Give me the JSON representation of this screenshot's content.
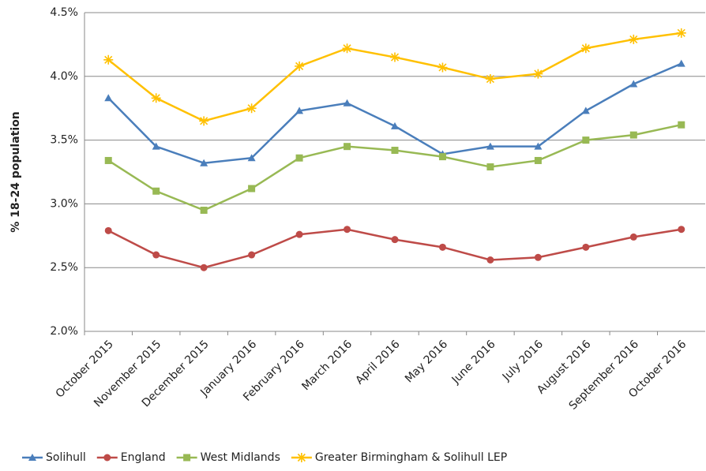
{
  "chart_data": {
    "type": "line",
    "y_label": "% 18-24 population",
    "categories": [
      "October 2015",
      "November 2015",
      "December 2015",
      "January 2016",
      "February 2016",
      "March 2016",
      "April 2016",
      "May 2016",
      "June 2016",
      "July 2016",
      "August 2016",
      "September 2016",
      "October 2016"
    ],
    "series": [
      {
        "name": "Solihull",
        "color": "#4a7ebb",
        "marker": "triangle",
        "values": [
          3.83,
          3.45,
          3.32,
          3.36,
          3.73,
          3.79,
          3.61,
          3.39,
          3.45,
          3.45,
          3.73,
          3.94,
          4.1
        ]
      },
      {
        "name": "England",
        "color": "#be4b48",
        "marker": "circle",
        "values": [
          2.79,
          2.6,
          2.5,
          2.6,
          2.76,
          2.8,
          2.72,
          2.66,
          2.56,
          2.58,
          2.66,
          2.74,
          2.8
        ]
      },
      {
        "name": "West Midlands",
        "color": "#98b954",
        "marker": "square",
        "values": [
          3.34,
          3.1,
          2.95,
          3.12,
          3.36,
          3.45,
          3.42,
          3.37,
          3.29,
          3.34,
          3.5,
          3.54,
          3.62
        ]
      },
      {
        "name": "Greater Birmingham & Solihull LEP",
        "color": "#ffc000",
        "marker": "star",
        "values": [
          4.13,
          3.83,
          3.65,
          3.75,
          4.08,
          4.22,
          4.15,
          4.07,
          3.98,
          4.02,
          4.22,
          4.29,
          4.34
        ]
      }
    ],
    "ylim": [
      2,
      4.5
    ],
    "yticks": [
      {
        "value": 2,
        "label": "2.0%"
      },
      {
        "value": 2.5,
        "label": "2.5%"
      },
      {
        "value": 3,
        "label": "3.0%"
      },
      {
        "value": 3.5,
        "label": "3.5%"
      },
      {
        "value": 4,
        "label": "4.0%"
      },
      {
        "value": 4.5,
        "label": "4.5%"
      }
    ],
    "grid": true,
    "legend": "bottom"
  }
}
